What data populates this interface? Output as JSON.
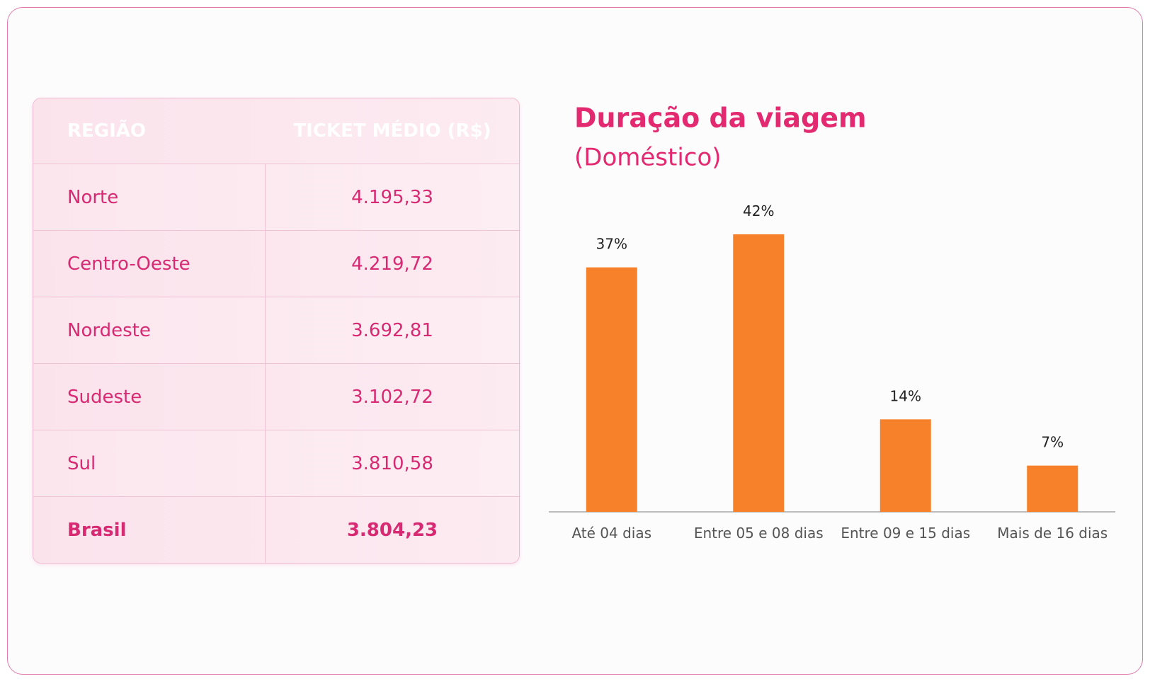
{
  "table": {
    "header": [
      "REGIÃO",
      "TICKET MÉDIO (R$)"
    ],
    "rows": [
      [
        "Norte",
        "4.195,33"
      ],
      [
        "Centro-Oeste",
        "4.219,72"
      ],
      [
        "Nordeste",
        "3.692,81"
      ],
      [
        "Sudeste",
        "3.102,72"
      ],
      [
        "Sul",
        "3.810,58"
      ],
      [
        "Brasil",
        "3.804,23"
      ]
    ]
  },
  "chart_data": {
    "type": "bar",
    "title": "Duração da viagem",
    "subtitle": "(Doméstico)",
    "categories": [
      "Até 04 dias",
      "Entre 05 e 08 dias",
      "Entre 09 e 15 dias",
      "Mais de 16 dias"
    ],
    "values": [
      37,
      42,
      14,
      7
    ],
    "value_labels": [
      "37%",
      "42%",
      "14%",
      "7%"
    ],
    "color": "#f7812b"
  }
}
